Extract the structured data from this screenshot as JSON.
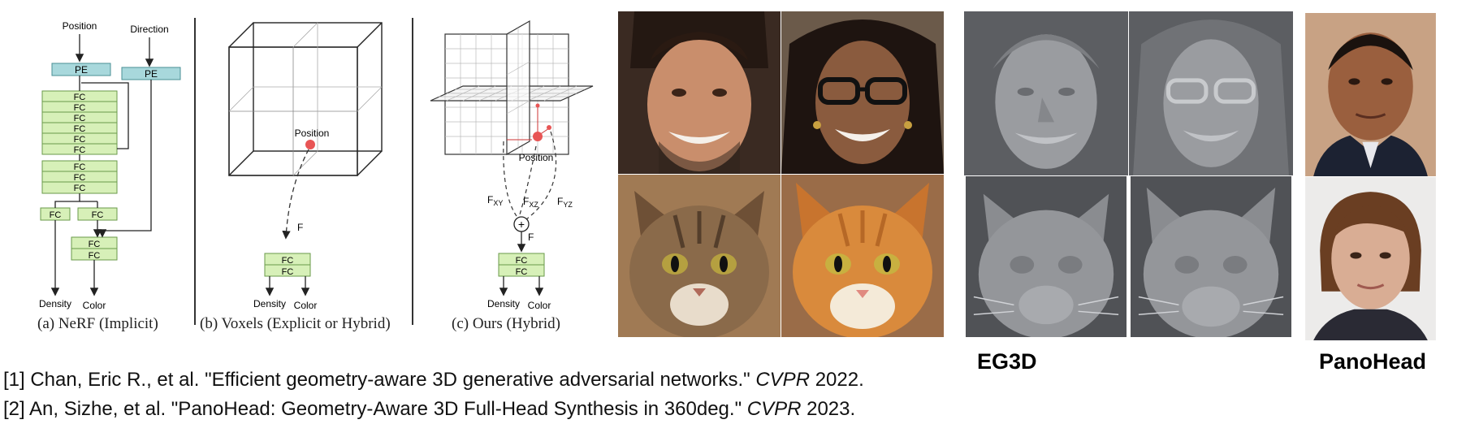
{
  "diagram_a": {
    "position_label": "Position",
    "direction_label": "Direction",
    "pe_label": "PE",
    "fc_label": "FC",
    "density_label": "Density",
    "color_label": "Color",
    "caption": "(a) NeRF (Implicit)"
  },
  "diagram_b": {
    "position_label": "Position",
    "feature_label": "F",
    "fc_label": "FC",
    "density_label": "Density",
    "color_label": "Color",
    "caption": "(b) Voxels (Explicit or Hybrid)"
  },
  "diagram_c": {
    "position_label": "Position",
    "fxy_main": "F",
    "fxy_sub": "XY",
    "fxz_main": "F",
    "fxz_sub": "XZ",
    "fyz_main": "F",
    "fyz_sub": "YZ",
    "sum_symbol": "+",
    "feature_label": "F",
    "fc_label": "FC",
    "density_label": "Density",
    "color_label": "Color",
    "caption": "(c) Ours (Hybrid)"
  },
  "methods": {
    "eg3d": "EG3D",
    "panohead": "PanoHead"
  },
  "references": [
    {
      "prefix": "[1] Chan, Eric R., et al. \"Efficient geometry-aware 3D generative adversarial networks.\" ",
      "venue": "CVPR",
      "year": " 2022."
    },
    {
      "prefix": "[2] An, Sizhe, et al. \"PanoHead: Geometry-Aware 3D Full-Head Synthesis in 360deg.\" ",
      "venue": "CVPR",
      "year": " 2023."
    }
  ],
  "colors": {
    "pe_box": "#a8d8dc",
    "fc_box": "#d7f0b8",
    "point": "#e85555",
    "accent_line": "#222222"
  }
}
